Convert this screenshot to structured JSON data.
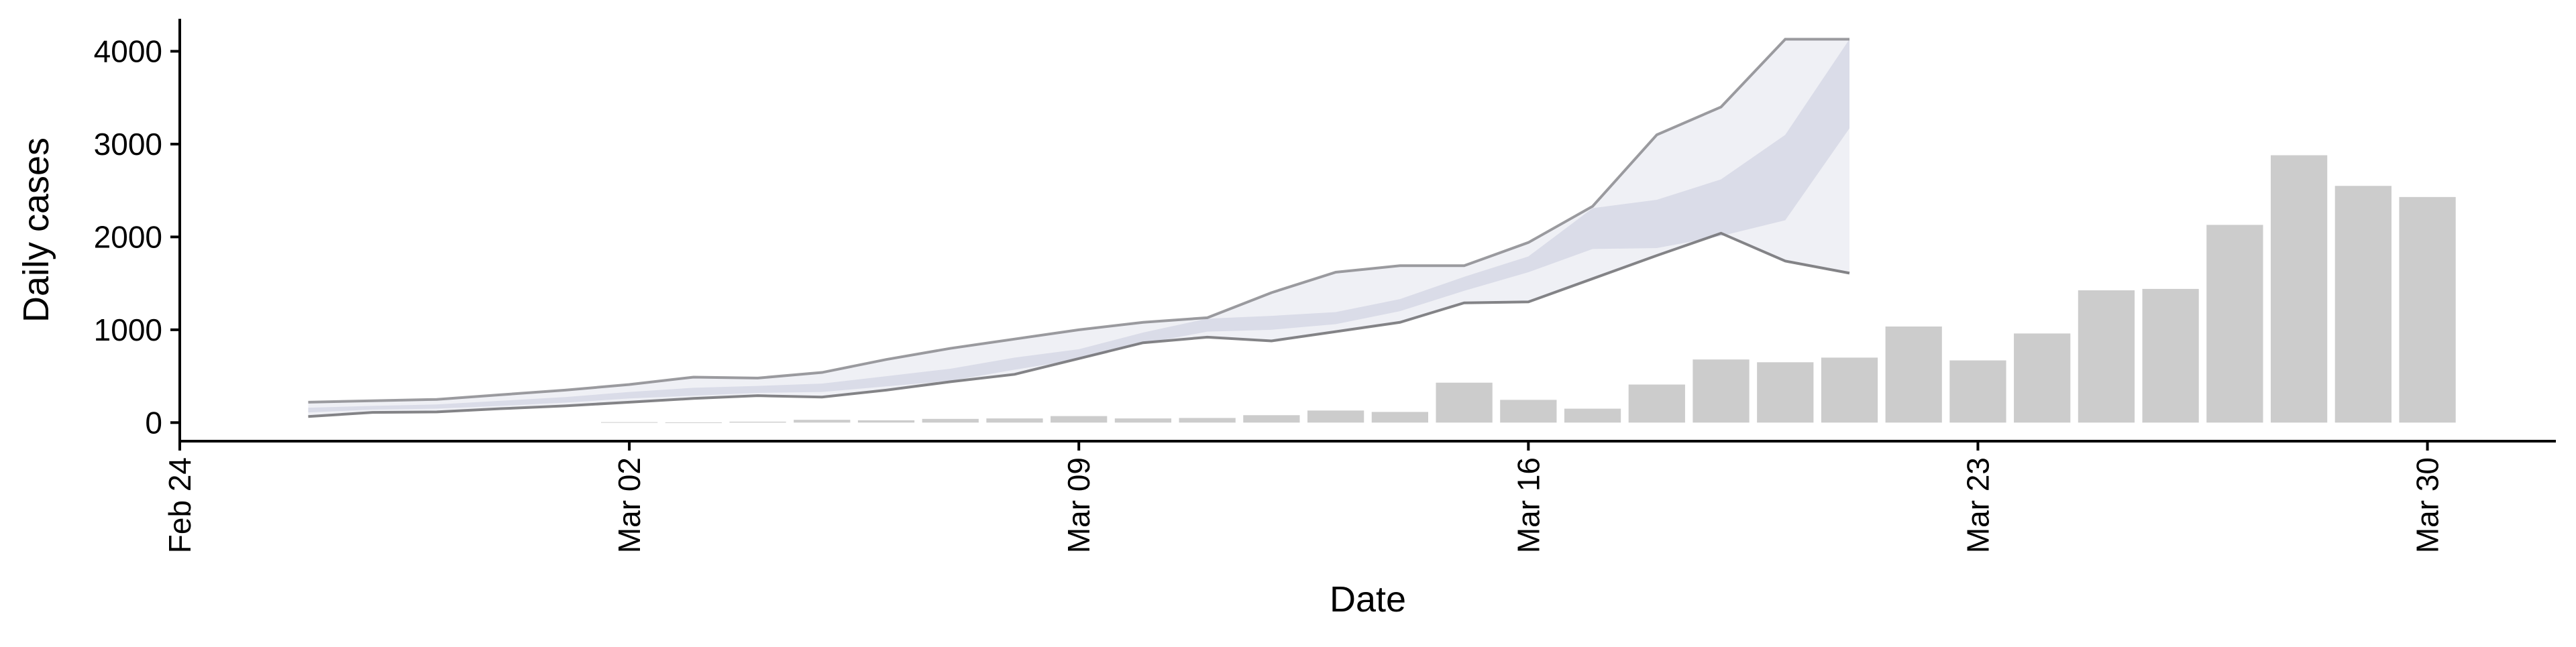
{
  "chart_data": {
    "type": "bar",
    "xlabel": "Date",
    "ylabel": "Daily cases",
    "ylim": [
      -200,
      4350
    ],
    "xlim": [
      "2020-02-24",
      "2020-04-01"
    ],
    "y_ticks": [
      0,
      1000,
      2000,
      3000,
      4000
    ],
    "x_ticks": [
      {
        "date": "2020-02-24",
        "label": "Feb 24"
      },
      {
        "date": "2020-03-02",
        "label": "Mar 02"
      },
      {
        "date": "2020-03-09",
        "label": "Mar 09"
      },
      {
        "date": "2020-03-16",
        "label": "Mar 16"
      },
      {
        "date": "2020-03-23",
        "label": "Mar 23"
      },
      {
        "date": "2020-03-30",
        "label": "Mar 30"
      }
    ],
    "grid": false,
    "legend": "none",
    "bars": {
      "color": "#cccccc",
      "dates": [
        "2020-03-02",
        "2020-03-03",
        "2020-03-04",
        "2020-03-05",
        "2020-03-06",
        "2020-03-07",
        "2020-03-08",
        "2020-03-09",
        "2020-03-10",
        "2020-03-11",
        "2020-03-12",
        "2020-03-13",
        "2020-03-14",
        "2020-03-15",
        "2020-03-16",
        "2020-03-17",
        "2020-03-18",
        "2020-03-19",
        "2020-03-20",
        "2020-03-21",
        "2020-03-22",
        "2020-03-23",
        "2020-03-24",
        "2020-03-25",
        "2020-03-26",
        "2020-03-27",
        "2020-03-28",
        "2020-03-29",
        "2020-03-30"
      ],
      "values": [
        5,
        2,
        10,
        30,
        25,
        40,
        45,
        70,
        45,
        50,
        80,
        130,
        115,
        430,
        245,
        150,
        410,
        680,
        650,
        700,
        1035,
        670,
        960,
        1425,
        1440,
        2130,
        2880,
        2550,
        2430
      ]
    },
    "forecast_band": {
      "color": "#c5c8dc",
      "dates": [
        "2020-02-26",
        "2020-02-27",
        "2020-02-28",
        "2020-02-29",
        "2020-03-01",
        "2020-03-02",
        "2020-03-03",
        "2020-03-04",
        "2020-03-05",
        "2020-03-06",
        "2020-03-07",
        "2020-03-08",
        "2020-03-09",
        "2020-03-10",
        "2020-03-11",
        "2020-03-12",
        "2020-03-13",
        "2020-03-14",
        "2020-03-15",
        "2020-03-16",
        "2020-03-17",
        "2020-03-18",
        "2020-03-19",
        "2020-03-20",
        "2020-03-21"
      ],
      "upper": [
        220,
        235,
        250,
        300,
        350,
        410,
        490,
        480,
        540,
        680,
        800,
        900,
        1000,
        1080,
        1130,
        1400,
        1620,
        1690,
        1690,
        1940,
        2330,
        3100,
        3400,
        4130,
        4130
      ],
      "lower": [
        65,
        110,
        115,
        150,
        180,
        220,
        260,
        290,
        275,
        350,
        440,
        520,
        690,
        860,
        920,
        880,
        980,
        1080,
        1290,
        1300,
        1550,
        1800,
        2040,
        1740,
        1610
      ],
      "q75": [
        160,
        180,
        195,
        235,
        275,
        330,
        375,
        395,
        420,
        500,
        580,
        700,
        790,
        970,
        1120,
        1150,
        1190,
        1330,
        1570,
        1790,
        2310,
        2400,
        2620,
        3100,
        4130
      ],
      "q25": [
        110,
        140,
        150,
        180,
        215,
        260,
        290,
        320,
        330,
        390,
        450,
        570,
        680,
        850,
        980,
        1000,
        1060,
        1200,
        1420,
        1620,
        1870,
        1880,
        2010,
        2180,
        3170
      ]
    }
  }
}
